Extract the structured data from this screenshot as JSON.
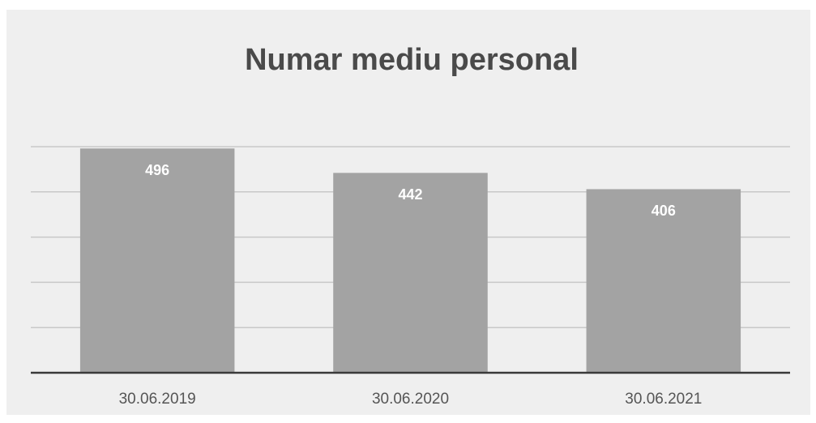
{
  "chart_data": {
    "type": "bar",
    "title": "Numar mediu personal",
    "categories": [
      "30.06.2019",
      "30.06.2020",
      "30.06.2021"
    ],
    "values": [
      496,
      442,
      406
    ],
    "color": "#a3a3a3",
    "ylim": [
      0,
      500
    ],
    "yticks": [
      0,
      100,
      200,
      300,
      400,
      500
    ],
    "grid": true
  }
}
